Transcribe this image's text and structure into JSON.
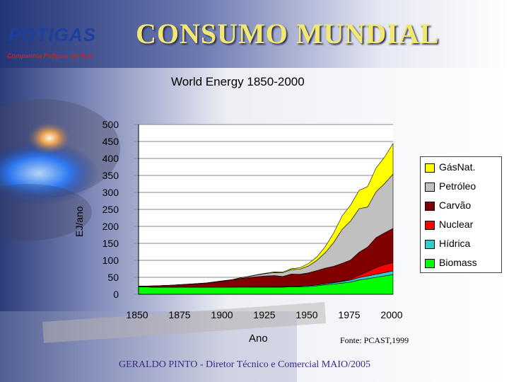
{
  "slide": {
    "title": "CONSUMO MUNDIAL",
    "logo_text": "POTIGAS",
    "logo_subtitle": "Companhia Potiguar de Gás",
    "footer": "GERALDO PINTO - Diretor Técnico e Comercial MAIO/2005"
  },
  "colors": {
    "gas": "#ffff00",
    "oil": "#c0c0c0",
    "coal": "#800000",
    "nuclear": "#ff0000",
    "hydro": "#33cccc",
    "biomass": "#00ff00",
    "title": "#f0e870",
    "logo": "#1d3fa0"
  },
  "chart_data": {
    "type": "area",
    "stacked": true,
    "title": "World Energy 1850-2000",
    "xlabel": "Ano",
    "ylabel": "EJ/ano",
    "source": "Fonte: PCAST,1999",
    "xlim": [
      1850,
      2000
    ],
    "ylim": [
      0,
      500
    ],
    "x_ticks": [
      1850,
      1875,
      1900,
      1925,
      1950,
      1975,
      2000
    ],
    "y_ticks": [
      0,
      50,
      100,
      150,
      200,
      250,
      300,
      350,
      400,
      450,
      500
    ],
    "x_tick_labels": [
      "1850",
      "1875",
      "1900",
      "1925",
      "1950",
      "1975",
      "2000"
    ],
    "y_tick_labels": [
      "0",
      "50",
      "100",
      "150",
      "200",
      "250",
      "300",
      "350",
      "400",
      "450",
      "500"
    ],
    "grid": "horizontal",
    "legend_position": "right",
    "legend": [
      "GásNat.",
      "Petróleo",
      "Carvão",
      "Nuclear",
      "Hídrica",
      "Biomass"
    ],
    "x": [
      1850,
      1860,
      1870,
      1880,
      1890,
      1900,
      1905,
      1910,
      1915,
      1920,
      1925,
      1930,
      1935,
      1940,
      1945,
      1950,
      1955,
      1960,
      1965,
      1970,
      1975,
      1980,
      1985,
      1990,
      1995,
      2000
    ],
    "series": [
      {
        "name": "Biomass",
        "values": [
          22,
          21,
          21,
          21,
          21,
          21,
          21,
          21,
          21,
          21,
          21,
          21,
          21,
          22,
          22,
          23,
          25,
          28,
          30,
          33,
          36,
          42,
          46,
          50,
          54,
          58
        ]
      },
      {
        "name": "Hídrica",
        "values": [
          0,
          0,
          0,
          0,
          0,
          0,
          0,
          0.5,
          0.5,
          1,
          1,
          1,
          1.5,
          1.5,
          2,
          2,
          2.5,
          3,
          4,
          5,
          6,
          7,
          8,
          9,
          10,
          11
        ]
      },
      {
        "name": "Nuclear",
        "values": [
          0,
          0,
          0,
          0,
          0,
          0,
          0,
          0,
          0,
          0,
          0,
          0,
          0,
          0,
          0,
          0,
          0,
          0,
          0.5,
          1,
          3,
          7,
          13,
          20,
          23,
          25
        ]
      },
      {
        "name": "Carvão",
        "values": [
          2,
          4,
          6,
          9,
          12,
          18,
          21,
          25,
          28,
          30,
          32,
          33,
          30,
          36,
          35,
          38,
          42,
          46,
          48,
          52,
          56,
          68,
          72,
          88,
          94,
          100
        ]
      },
      {
        "name": "Petróleo",
        "values": [
          0,
          0,
          0,
          0,
          0.5,
          1,
          1,
          2,
          3,
          5,
          7,
          9,
          11,
          13,
          15,
          20,
          30,
          45,
          70,
          100,
          115,
          128,
          118,
          135,
          145,
          160
        ]
      },
      {
        "name": "GásNat.",
        "values": [
          0,
          0,
          0,
          0,
          0,
          0,
          0,
          0,
          0.5,
          1,
          1,
          2,
          2,
          3,
          4,
          7,
          10,
          18,
          28,
          40,
          47,
          54,
          60,
          70,
          78,
          90
        ]
      }
    ]
  }
}
